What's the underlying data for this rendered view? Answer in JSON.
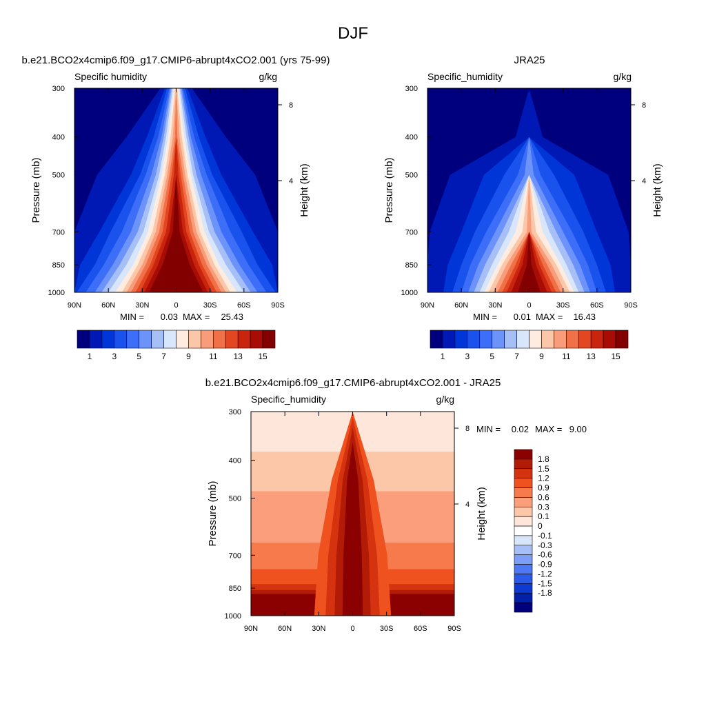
{
  "figure": {
    "title": "DJF"
  },
  "x_ticks": [
    "90N",
    "60N",
    "30N",
    "0",
    "30S",
    "60S",
    "90S"
  ],
  "p_ticks": [
    "300",
    "400",
    "500",
    "700",
    "850",
    "1000"
  ],
  "panels": [
    {
      "heading": "b.e21.BCO2x4cmip6.f09_g17.CMIP6-abrupt4xCO2.001 (yrs 75-99)",
      "left_label": "Specific humidity",
      "right_label": "g/kg",
      "ylabel": "Pressure (mb)",
      "y2label": "Height (km)",
      "height_ticks": [
        "8",
        "4"
      ],
      "stats": {
        "min_label": "MIN =",
        "min": "0.03",
        "max_label": "MAX =",
        "max": "25.43"
      }
    },
    {
      "heading": "JRA25",
      "left_label": "Specific_humidity",
      "right_label": "g/kg",
      "ylabel": "Pressure (mb)",
      "y2label": "Height (km)",
      "height_ticks": [
        "8",
        "4"
      ],
      "stats": {
        "min_label": "MIN =",
        "min": "0.01",
        "max_label": "MAX =",
        "max": "16.43"
      }
    },
    {
      "heading": "b.e21.BCO2x4cmip6.f09_g17.CMIP6-abrupt4xCO2.001 - JRA25",
      "left_label": "Specific_humidity",
      "right_label": "g/kg",
      "ylabel": "Pressure (mb)",
      "y2label": "Height (km)",
      "height_ticks": [
        "8",
        "4"
      ],
      "stats": {
        "min_label": "MIN =",
        "min": "0.02",
        "max_label": "MAX =",
        "max": "9.00"
      }
    }
  ],
  "colorbars": {
    "horizontal": {
      "colors": [
        "#00007f",
        "#0019b5",
        "#0035d7",
        "#1a52ee",
        "#3d6ef7",
        "#6c93f9",
        "#a6bff7",
        "#d8e6fb",
        "#ffece0",
        "#fcc6a9",
        "#f89c79",
        "#f07048",
        "#e24721",
        "#c9250e",
        "#a80d05",
        "#820000"
      ],
      "labels": [
        "1",
        "3",
        "5",
        "7",
        "9",
        "11",
        "13",
        "15"
      ]
    },
    "vertical": {
      "colors": [
        "#8b0000",
        "#b21b06",
        "#d5320f",
        "#f0521f",
        "#f77a4c",
        "#fa9e7b",
        "#fcc6a9",
        "#fee7da",
        "#ffffff",
        "#d8e6fb",
        "#a6bff7",
        "#7d9ef6",
        "#4f79f2",
        "#2b5aea",
        "#0f3ad1",
        "#0020a8",
        "#00007f"
      ],
      "labels": [
        "1.8",
        "1.5",
        "1.2",
        "0.9",
        "0.6",
        "0.3",
        "0.1",
        "0",
        "-0.1",
        "-0.3",
        "-0.6",
        "-0.9",
        "-1.2",
        "-1.5",
        "-1.8"
      ]
    }
  },
  "chart_data": [
    {
      "type": "heatmap",
      "title": "b.e21.BCO2x4cmip6.f09_g17.CMIP6-abrupt4xCO2.001 (yrs 75-99)",
      "variable": "Specific humidity",
      "units": "g/kg",
      "xlabel": "",
      "ylabel": "Pressure (mb)",
      "y2label": "Height (km)",
      "x": [
        "90N",
        "60N",
        "30N",
        "0",
        "30S",
        "60S",
        "90S"
      ],
      "y": [
        300,
        400,
        500,
        700,
        850,
        1000
      ],
      "y_scale": "log-pressure",
      "levels": [
        1,
        2,
        3,
        4,
        5,
        6,
        7,
        8,
        9,
        10,
        11,
        12,
        13,
        14,
        15
      ],
      "min": 0.03,
      "max": 25.43,
      "peak": {
        "lat": 0,
        "pressure": 1000,
        "value_ge": 15
      },
      "surface_peak_halfwidth_deg_by_level": [
        90,
        70,
        62,
        58,
        54,
        50,
        46,
        42,
        38,
        35,
        32,
        29,
        26,
        24,
        20,
        18
      ],
      "shape_widths_by_level_and_pressure": [
        [
          90,
          90,
          90,
          90,
          90,
          90
        ],
        [
          14,
          44,
          70,
          90,
          90,
          90
        ],
        [
          10,
          26,
          40,
          68,
          85,
          90
        ],
        [
          8,
          20,
          32,
          58,
          72,
          88
        ],
        [
          6,
          16,
          27,
          48,
          64,
          80
        ],
        [
          5,
          13,
          22,
          40,
          56,
          72
        ],
        [
          4,
          11,
          18,
          34,
          50,
          66
        ],
        [
          3,
          9,
          15,
          29,
          44,
          60
        ],
        [
          2,
          7,
          13,
          25,
          38,
          54
        ],
        [
          1,
          5,
          10,
          21,
          34,
          48
        ],
        [
          0,
          3,
          8,
          18,
          30,
          44
        ],
        [
          0,
          1,
          6,
          15,
          27,
          40
        ],
        [
          0,
          0,
          4,
          12,
          23,
          36
        ],
        [
          0,
          0,
          2,
          9,
          20,
          32
        ],
        [
          0,
          0,
          0,
          6,
          16,
          28
        ],
        [
          0,
          0,
          0,
          3,
          12,
          24
        ]
      ]
    },
    {
      "type": "heatmap",
      "title": "JRA25",
      "variable": "Specific_humidity",
      "units": "g/kg",
      "xlabel": "",
      "ylabel": "Pressure (mb)",
      "y2label": "Height (km)",
      "x": [
        "90N",
        "60N",
        "30N",
        "0",
        "30S",
        "60S",
        "90S"
      ],
      "y": [
        300,
        400,
        500,
        700,
        850,
        1000
      ],
      "y_scale": "log-pressure",
      "levels": [
        1,
        2,
        3,
        4,
        5,
        6,
        7,
        8,
        9,
        10,
        11,
        12,
        13,
        14,
        15
      ],
      "min": 0.01,
      "max": 16.43,
      "peak": {
        "lat": 0,
        "pressure": 1000,
        "value_ge": 15
      },
      "shape_widths_by_level_and_pressure": [
        [
          90,
          90,
          90,
          90,
          90,
          90
        ],
        [
          0,
          12,
          70,
          88,
          90,
          90
        ],
        [
          0,
          0,
          40,
          60,
          72,
          76
        ],
        [
          0,
          0,
          22,
          48,
          60,
          68
        ],
        [
          0,
          0,
          10,
          38,
          52,
          60
        ],
        [
          0,
          0,
          4,
          30,
          45,
          54
        ],
        [
          0,
          0,
          0,
          24,
          39,
          49
        ],
        [
          0,
          0,
          0,
          18,
          33,
          44
        ],
        [
          0,
          0,
          0,
          12,
          28,
          40
        ],
        [
          0,
          0,
          0,
          6,
          24,
          36
        ],
        [
          0,
          0,
          0,
          2,
          20,
          32
        ],
        [
          0,
          0,
          0,
          0,
          16,
          28
        ],
        [
          0,
          0,
          0,
          0,
          12,
          24
        ],
        [
          0,
          0,
          0,
          0,
          9,
          20
        ],
        [
          0,
          0,
          0,
          0,
          6,
          16
        ],
        [
          0,
          0,
          0,
          0,
          2,
          10
        ]
      ]
    },
    {
      "type": "heatmap",
      "title": "b.e21.BCO2x4cmip6.f09_g17.CMIP6-abrupt4xCO2.001 - JRA25",
      "variable": "Specific_humidity",
      "units": "g/kg",
      "xlabel": "",
      "ylabel": "Pressure (mb)",
      "y2label": "Height (km)",
      "x": [
        "90N",
        "60N",
        "30N",
        "0",
        "30S",
        "60S",
        "90S"
      ],
      "y": [
        300,
        400,
        500,
        700,
        850,
        1000
      ],
      "y_scale": "log-pressure",
      "levels": [
        -1.8,
        -1.5,
        -1.2,
        -0.9,
        -0.6,
        -0.3,
        -0.1,
        0,
        0.1,
        0.3,
        0.6,
        0.9,
        1.2,
        1.5,
        1.8
      ],
      "min": 0.02,
      "max": 9.0,
      "bands_by_pressure": [
        {
          "pressure": 300,
          "value_range": [
            0.1,
            0.3
          ]
        },
        {
          "pressure": 400,
          "value_range": [
            0.1,
            0.6
          ]
        },
        {
          "pressure": 500,
          "value_range": [
            0.3,
            0.9
          ]
        },
        {
          "pressure": 700,
          "value_range": [
            0.6,
            1.5
          ]
        },
        {
          "pressure": 850,
          "value_range": [
            0.9,
            1.8
          ]
        },
        {
          "pressure": 1000,
          "value_range": [
            1.2,
            1.8
          ]
        }
      ],
      "tropical_maximum": {
        "lat_range": [
          "10N",
          "10S"
        ],
        "value_ge": 1.8
      }
    }
  ]
}
